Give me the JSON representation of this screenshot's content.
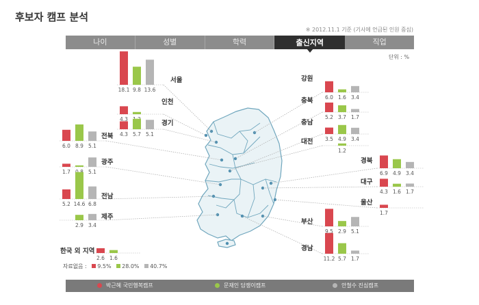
{
  "header": {
    "title": "후보자 캠프 분석",
    "subtitle": "※ 2012.11.1 기준 (기사에 언급된 인원 중심)",
    "unit": "단위 : %"
  },
  "tabs": [
    {
      "label": "나이",
      "active": false
    },
    {
      "label": "성별",
      "active": false
    },
    {
      "label": "학력",
      "active": false
    },
    {
      "label": "출신지역",
      "active": true
    },
    {
      "label": "직업",
      "active": false
    }
  ],
  "legend": {
    "items": [
      {
        "label": "박근혜  국민행복캠프",
        "color": "#d9474f"
      },
      {
        "label": "문재인 담쟁이캠프",
        "color": "#9ac74a"
      },
      {
        "label": "안철수 진심캠프",
        "color": "#b5b5b5"
      }
    ]
  },
  "share": {
    "label": "자료없음 :",
    "values": [
      "9.5%",
      "28.0%",
      "40.7%"
    ]
  },
  "chart_data": {
    "type": "bar",
    "title": "",
    "series": [
      {
        "name": "박근혜 국민행복캠프",
        "color": "#d9474f"
      },
      {
        "name": "문재인 담쟁이캠프",
        "color": "#9ac74a"
      },
      {
        "name": "안철수 진심캠프",
        "color": "#b5b5b5"
      }
    ],
    "regions": [
      {
        "name": "서울",
        "values": [
          18.1,
          9.8,
          13.6
        ],
        "labels": [
          "18.1",
          "9.8",
          "13.6"
        ]
      },
      {
        "name": "인천",
        "values": [
          4.3,
          1.2,
          null
        ],
        "labels": [
          "4.3",
          "1.2",
          ""
        ]
      },
      {
        "name": "경기",
        "values": [
          4.3,
          5.7,
          5.1
        ],
        "labels": [
          "4.3",
          "5.7",
          "5.1"
        ]
      },
      {
        "name": "전북",
        "values": [
          6.0,
          8.9,
          5.1
        ],
        "labels": [
          "6.0",
          "8.9",
          "5.1"
        ]
      },
      {
        "name": "광주",
        "values": [
          1.7,
          0.8,
          5.1
        ],
        "labels": [
          "1.7",
          "0.8",
          "5.1"
        ]
      },
      {
        "name": "전남",
        "values": [
          5.2,
          14.6,
          6.8
        ],
        "labels": [
          "5.2",
          "14.6",
          "6.8"
        ]
      },
      {
        "name": "제주",
        "values": [
          null,
          2.9,
          3.4
        ],
        "labels": [
          "",
          "2.9",
          "3.4"
        ]
      },
      {
        "name": "한국 외 지역",
        "values": [
          2.6,
          1.6,
          null
        ],
        "labels": [
          "2.6",
          "1.6",
          ""
        ]
      },
      {
        "name": "강원",
        "values": [
          6.0,
          1.6,
          3.4
        ],
        "labels": [
          "6.0",
          "1.6",
          "3.4"
        ]
      },
      {
        "name": "충북",
        "values": [
          5.2,
          3.7,
          1.7
        ],
        "labels": [
          "5.2",
          "3.7",
          "1.7"
        ]
      },
      {
        "name": "충남",
        "values": [
          3.5,
          4.9,
          3.4
        ],
        "labels": [
          "3.5",
          "4.9",
          "3.4"
        ]
      },
      {
        "name": "대전",
        "values": [
          null,
          1.2,
          null
        ],
        "labels": [
          "",
          "1.2",
          ""
        ]
      },
      {
        "name": "경북",
        "values": [
          6.9,
          4.9,
          3.4
        ],
        "labels": [
          "6.9",
          "4.9",
          "3.4"
        ]
      },
      {
        "name": "대구",
        "values": [
          4.3,
          1.6,
          1.7
        ],
        "labels": [
          "4.3",
          "1.6",
          "1.7"
        ]
      },
      {
        "name": "울산",
        "values": [
          1.7,
          null,
          null
        ],
        "labels": [
          "1.7",
          "",
          ""
        ]
      },
      {
        "name": "부산",
        "values": [
          9.5,
          2.9,
          5.1
        ],
        "labels": [
          "9.5",
          "2.9",
          "5.1"
        ]
      },
      {
        "name": "경남",
        "values": [
          11.2,
          5.7,
          1.7
        ],
        "labels": [
          "11.2",
          "5.7",
          "1.7"
        ]
      }
    ]
  }
}
